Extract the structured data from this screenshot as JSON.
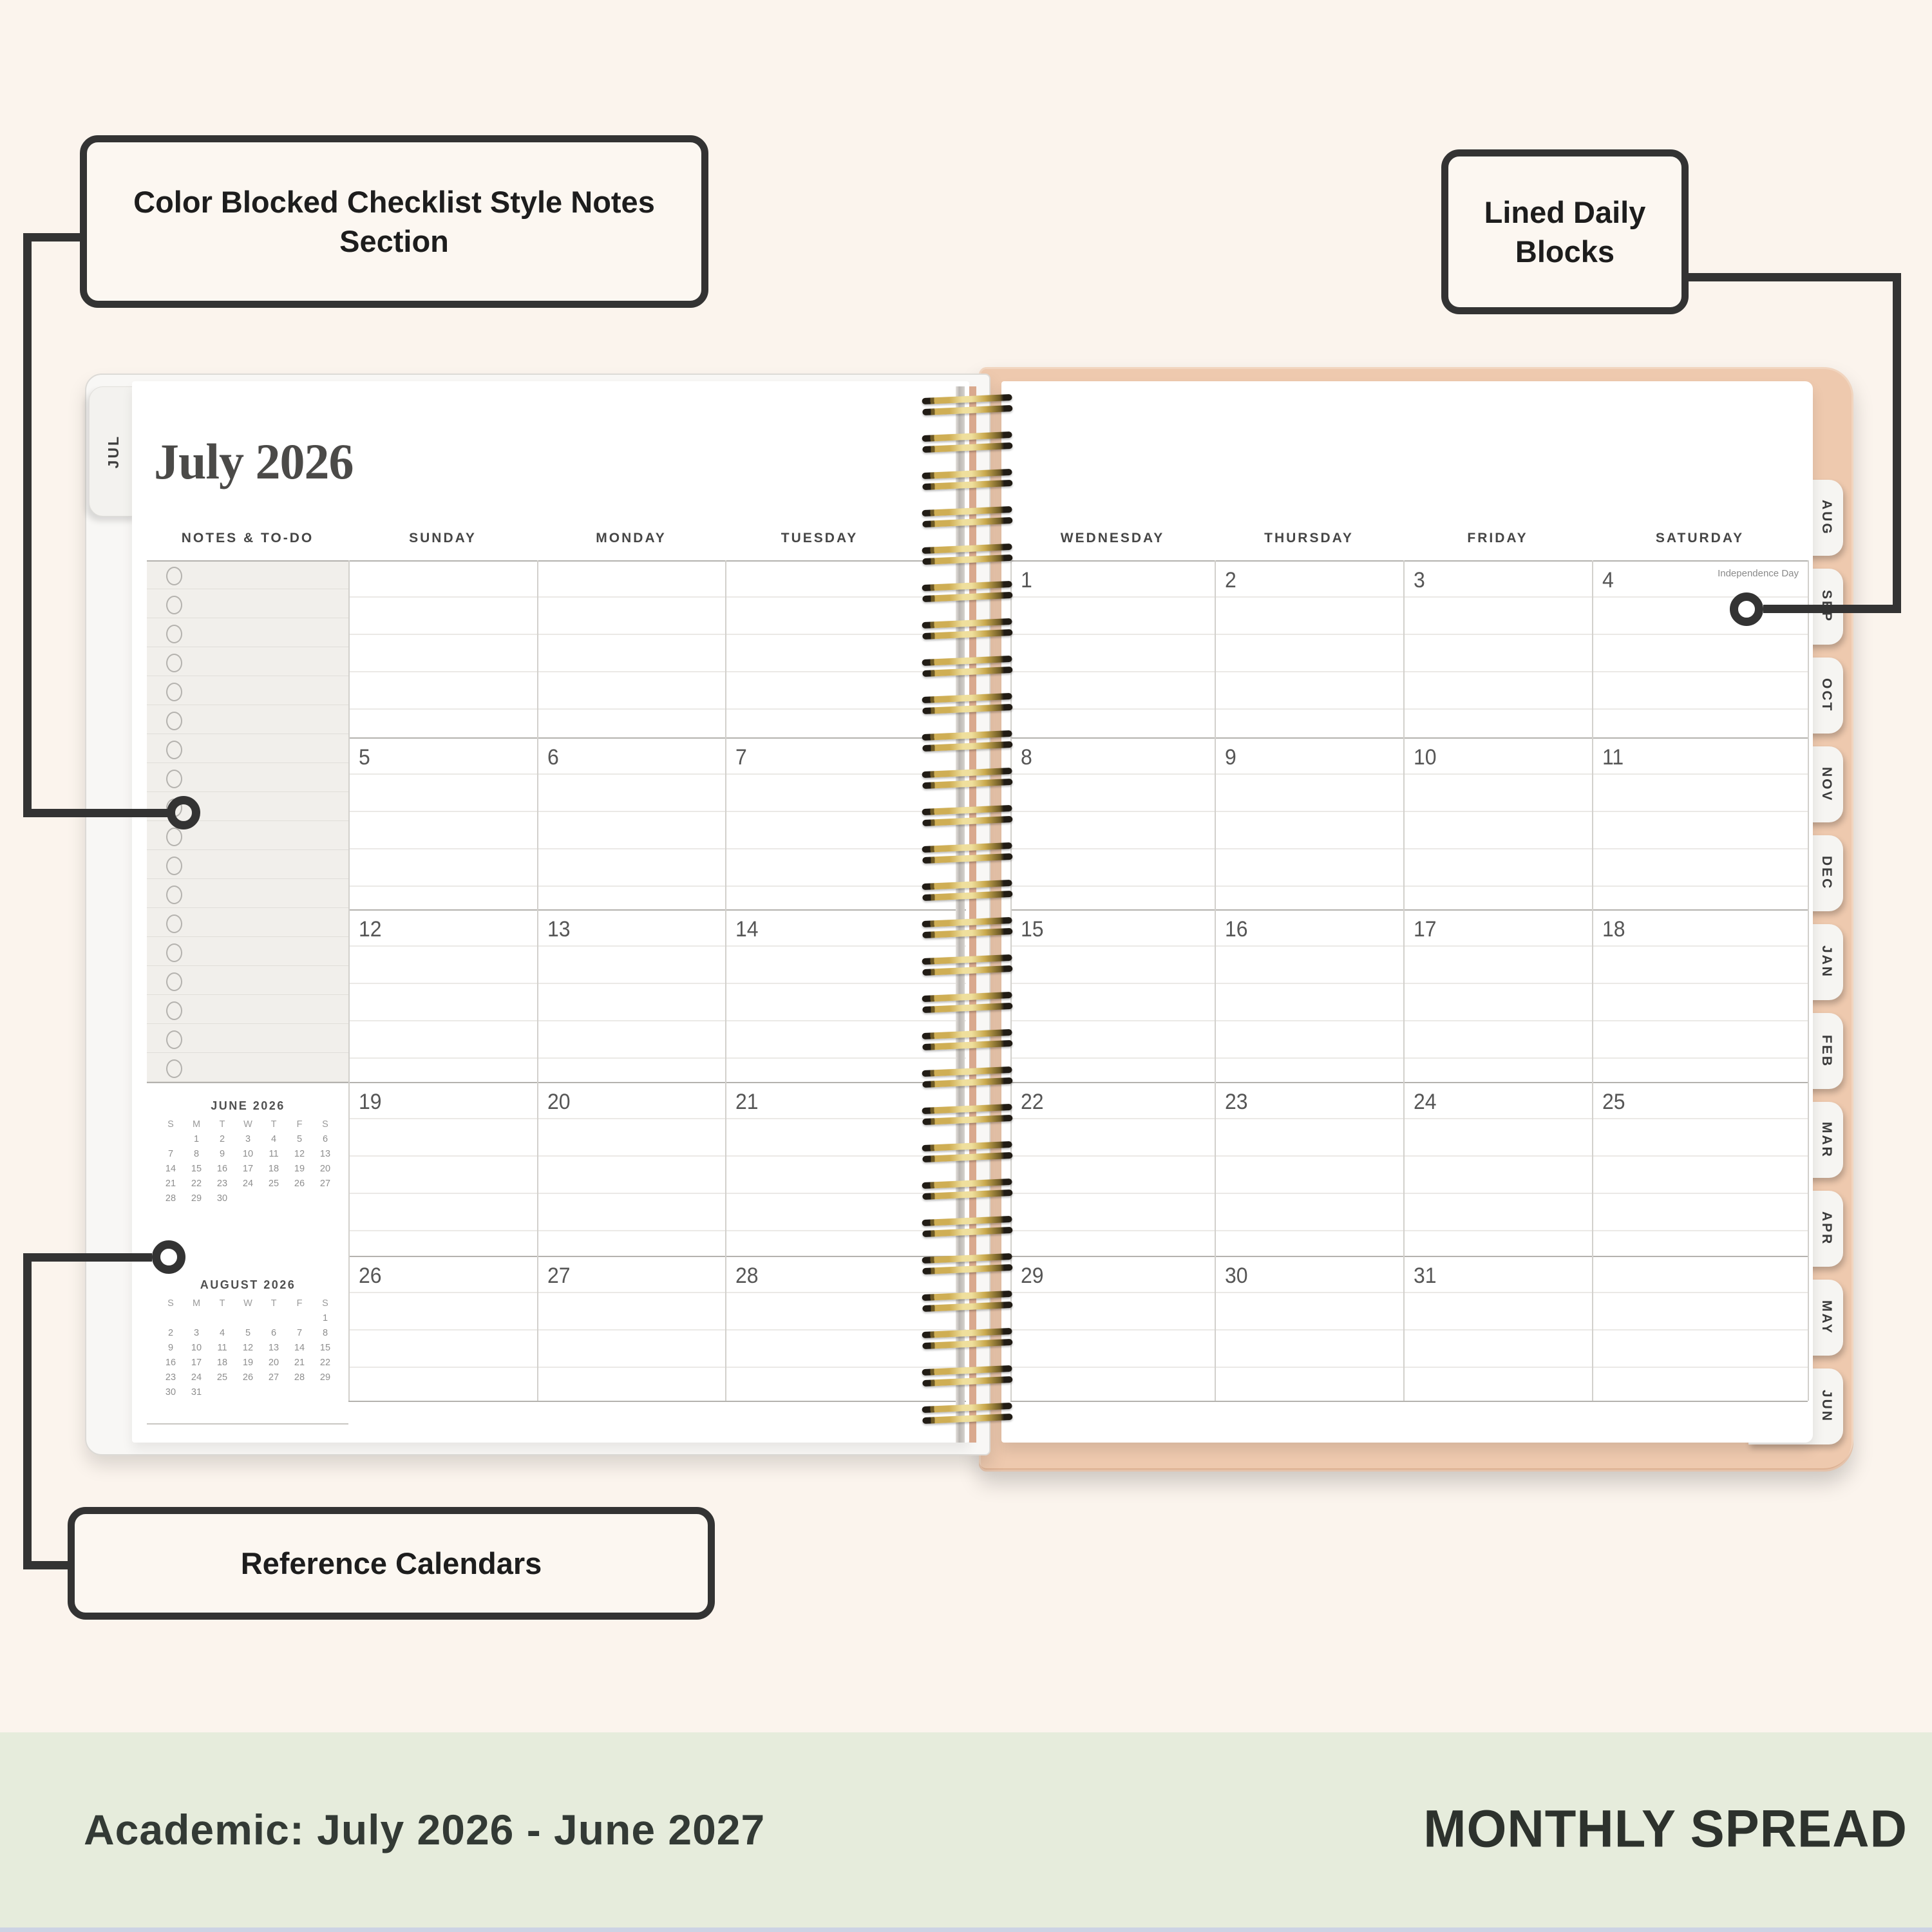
{
  "annotations": {
    "callout_notes": "Color Blocked Checklist Style Notes Section",
    "callout_lined": "Lined Daily Blocks",
    "callout_reference": "Reference Calendars"
  },
  "footer": {
    "left": "Academic: July 2026 - June 2027",
    "right": "MONTHLY SPREAD"
  },
  "planner": {
    "left_tab": "JUL",
    "title": "July 2026",
    "notes_header": "NOTES & TO-DO",
    "day_headers_left": [
      "SUNDAY",
      "MONDAY",
      "TUESDAY"
    ],
    "day_headers_right": [
      "WEDNESDAY",
      "THURSDAY",
      "FRIDAY",
      "SATURDAY"
    ],
    "holiday": {
      "date": "4",
      "label": "Independence Day"
    },
    "weeks_left": [
      [
        "",
        "",
        ""
      ],
      [
        "5",
        "6",
        "7"
      ],
      [
        "12",
        "13",
        "14"
      ],
      [
        "19",
        "20",
        "21"
      ],
      [
        "26",
        "27",
        "28"
      ]
    ],
    "weeks_right": [
      [
        "1",
        "2",
        "3",
        "4"
      ],
      [
        "8",
        "9",
        "10",
        "11"
      ],
      [
        "15",
        "16",
        "17",
        "18"
      ],
      [
        "22",
        "23",
        "24",
        "25"
      ],
      [
        "29",
        "30",
        "31",
        ""
      ]
    ],
    "month_tabs": [
      "AUG",
      "SEP",
      "OCT",
      "NOV",
      "DEC",
      "JAN",
      "FEB",
      "MAR",
      "APR",
      "MAY",
      "JUN"
    ],
    "mini_calendars": [
      {
        "title": "JUNE 2026",
        "day_letters": [
          "S",
          "M",
          "T",
          "W",
          "T",
          "F",
          "S"
        ],
        "rows": [
          [
            "",
            "1",
            "2",
            "3",
            "4",
            "5",
            "6"
          ],
          [
            "7",
            "8",
            "9",
            "10",
            "11",
            "12",
            "13"
          ],
          [
            "14",
            "15",
            "16",
            "17",
            "18",
            "19",
            "20"
          ],
          [
            "21",
            "22",
            "23",
            "24",
            "25",
            "26",
            "27"
          ],
          [
            "28",
            "29",
            "30",
            "",
            "",
            "",
            ""
          ]
        ]
      },
      {
        "title": "AUGUST 2026",
        "day_letters": [
          "S",
          "M",
          "T",
          "W",
          "T",
          "F",
          "S"
        ],
        "rows": [
          [
            "",
            "",
            "",
            "",
            "",
            "",
            "1"
          ],
          [
            "2",
            "3",
            "4",
            "5",
            "6",
            "7",
            "8"
          ],
          [
            "9",
            "10",
            "11",
            "12",
            "13",
            "14",
            "15"
          ],
          [
            "16",
            "17",
            "18",
            "19",
            "20",
            "21",
            "22"
          ],
          [
            "23",
            "24",
            "25",
            "26",
            "27",
            "28",
            "29"
          ],
          [
            "30",
            "31",
            "",
            "",
            "",
            "",
            ""
          ]
        ]
      }
    ]
  },
  "colors": {
    "background": "#fbf4ed",
    "footer_band": "#e6ecdc",
    "cover_peach": "#eec9ae",
    "ink": "#333333",
    "spiral_gold": "#cfae54",
    "notes_gray": "#f1efeb"
  }
}
